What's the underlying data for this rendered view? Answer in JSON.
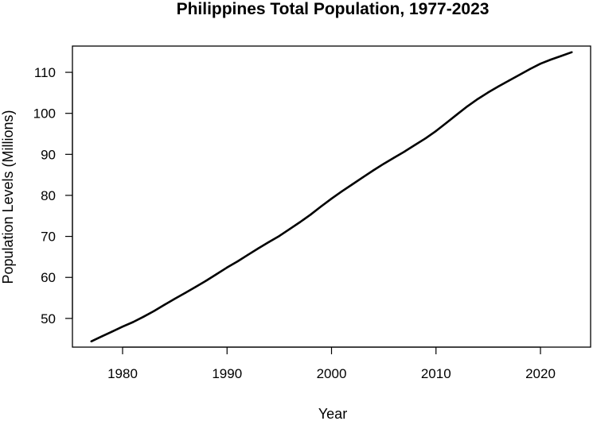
{
  "chart_data": {
    "type": "line",
    "title": "Philippines Total Population, 1977-2023",
    "xlabel": "Year",
    "ylabel": "Population Levels (Millions)",
    "xlim": [
      1975.2,
      2024.8
    ],
    "ylim": [
      43.0,
      116.4
    ],
    "xticks": [
      1980,
      1990,
      2000,
      2010,
      2020
    ],
    "yticks": [
      50,
      60,
      70,
      80,
      90,
      100,
      110
    ],
    "grid": false,
    "legend": "none",
    "line_color": "#000000",
    "series": [
      {
        "x": [
          1977,
          1978,
          1979,
          1980,
          1981,
          1982,
          1983,
          1984,
          1985,
          1986,
          1987,
          1988,
          1989,
          1990,
          1991,
          1992,
          1993,
          1994,
          1995,
          1996,
          1997,
          1998,
          1999,
          2000,
          2001,
          2002,
          2003,
          2004,
          2005,
          2006,
          2007,
          2008,
          2009,
          2010,
          2011,
          2012,
          2013,
          2014,
          2015,
          2016,
          2017,
          2018,
          2019,
          2020,
          2021,
          2022,
          2023
        ],
        "values": [
          44.4,
          45.6,
          46.8,
          48.0,
          49.1,
          50.4,
          51.8,
          53.3,
          54.8,
          56.2,
          57.7,
          59.2,
          60.8,
          62.4,
          63.9,
          65.5,
          67.1,
          68.6,
          70.1,
          71.8,
          73.5,
          75.3,
          77.3,
          79.2,
          81.0,
          82.7,
          84.4,
          86.1,
          87.7,
          89.2,
          90.7,
          92.3,
          93.9,
          95.7,
          97.7,
          99.7,
          101.7,
          103.5,
          105.1,
          106.6,
          108.0,
          109.4,
          110.8,
          112.1,
          113.1,
          114.0,
          114.9
        ]
      }
    ]
  }
}
